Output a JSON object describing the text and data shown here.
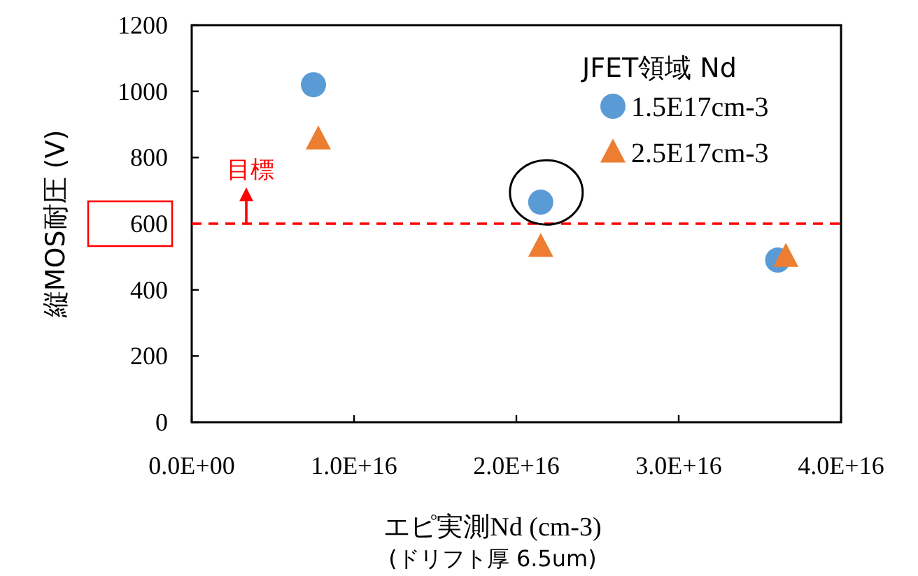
{
  "chart_data": {
    "type": "scatter",
    "xlabel": "エピ実測Nd (cm-3)\n(ドリフト厚 6.5um)",
    "ylabel": "縦MOS耐圧 (V)",
    "legend_title": "JFET領域 Nd",
    "legend": "top right",
    "grid": false,
    "xlim": [
      0,
      4e+16
    ],
    "xticks": [
      {
        "value": 0,
        "label": "0.0E+00"
      },
      {
        "value": 1e+16,
        "label": "1.0E+16"
      },
      {
        "value": 2e+16,
        "label": "2.0E+16"
      },
      {
        "value": 3e+16,
        "label": "3.0E+16"
      },
      {
        "value": 4e+16,
        "label": "4.0E+16"
      }
    ],
    "ylim": [
      0,
      1200
    ],
    "yticks": [
      0,
      200,
      400,
      600,
      800,
      1000,
      1200
    ],
    "series": [
      {
        "name": "1.5E17cm-3",
        "color": "#5b9bd5",
        "marker": "circle",
        "x": [
          7500000000000000.0,
          2.15e+16,
          3.61e+16
        ],
        "values": [
          1020,
          665,
          490
        ]
      },
      {
        "name": "2.5E17cm-3",
        "color": "#ed7d31",
        "marker": "triangle",
        "x": [
          7800000000000000.0,
          2.15e+16,
          3.66e+16
        ],
        "values": [
          855,
          530,
          500
        ]
      }
    ],
    "ref_lines": [
      {
        "axis": "y",
        "value": 600,
        "label": "目標",
        "color": "#ff0000",
        "line_style": "dashed"
      }
    ]
  }
}
